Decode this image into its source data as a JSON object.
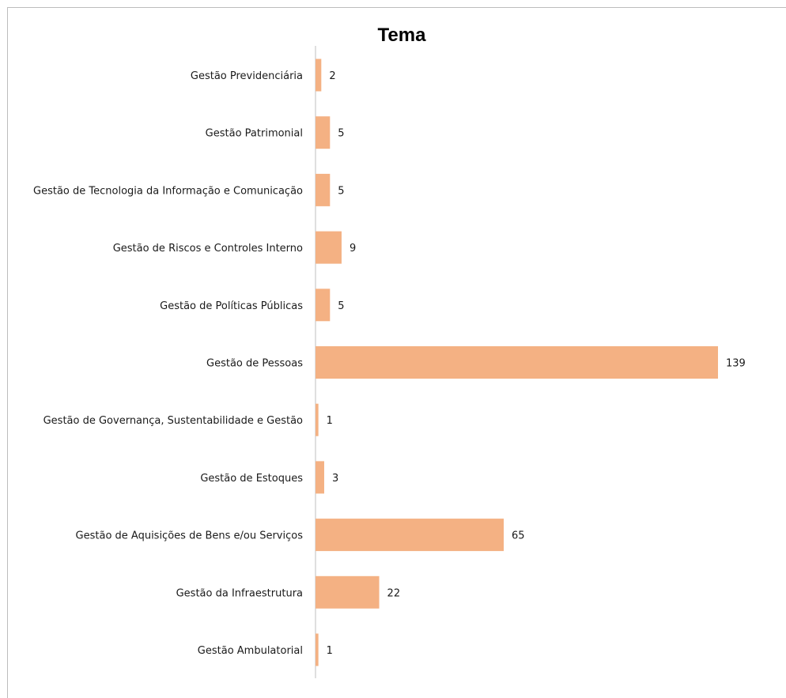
{
  "chart_data": {
    "type": "bar",
    "orientation": "horizontal",
    "title": "Tema",
    "categories": [
      "Gestão Previdenciária",
      "Gestão Patrimonial",
      "Gestão de Tecnologia da Informação e Comunicação",
      "Gestão de Riscos e Controles Interno",
      "Gestão de Políticas Públicas",
      "Gestão de Pessoas",
      "Gestão de Governança, Sustentabilidade e Gestão",
      "Gestão de Estoques",
      "Gestão de Aquisições de Bens e/ou Serviços",
      "Gestão da Infraestrutura",
      "Gestão Ambulatorial"
    ],
    "values": [
      2,
      5,
      5,
      9,
      5,
      139,
      1,
      3,
      65,
      22,
      1
    ],
    "data_labels": [
      "2",
      "5",
      "5",
      "9",
      "5",
      "139",
      "1",
      "3",
      "65",
      "22",
      "1"
    ],
    "xlim": [
      0,
      139
    ],
    "grid": false,
    "legend": "none",
    "bar_color": "#f4b183"
  }
}
